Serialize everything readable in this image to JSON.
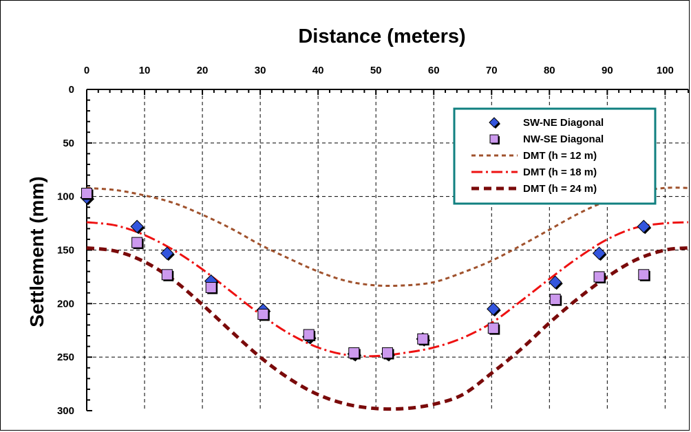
{
  "chart_data": {
    "type": "scatter",
    "title": "Distance (meters)",
    "xlabel": "Distance (meters)",
    "ylabel": "Settlement (mm)",
    "xlim": [
      0,
      104
    ],
    "ylim": [
      0,
      300
    ],
    "y_inverted": true,
    "x_axis_position": "top",
    "x_ticks": [
      0,
      10,
      20,
      30,
      40,
      50,
      60,
      70,
      80,
      90,
      100
    ],
    "y_ticks": [
      0,
      50,
      100,
      150,
      200,
      250,
      300
    ],
    "grid": true,
    "legend_position": "top-right",
    "series": [
      {
        "name": "SW-NE Diagonal",
        "marker": "diamond",
        "color": "#3355dd",
        "points": [
          [
            0,
            101
          ],
          [
            8.7,
            128
          ],
          [
            13.9,
            153
          ],
          [
            21.5,
            179
          ],
          [
            30.5,
            206
          ],
          [
            38.4,
            231
          ],
          [
            46.2,
            247
          ],
          [
            52,
            247
          ],
          [
            58.1,
            233
          ],
          [
            70.3,
            205
          ],
          [
            81,
            180
          ],
          [
            88.6,
            153
          ],
          [
            96.3,
            128
          ]
        ]
      },
      {
        "name": "NW-SE Diagonal",
        "marker": "square",
        "color": "#cc99ee",
        "points": [
          [
            0,
            97
          ],
          [
            8.7,
            143
          ],
          [
            13.9,
            173
          ],
          [
            21.5,
            185
          ],
          [
            30.5,
            210
          ],
          [
            38.4,
            229
          ],
          [
            46.2,
            246
          ],
          [
            52,
            246
          ],
          [
            58.1,
            233
          ],
          [
            70.3,
            223
          ],
          [
            81,
            196
          ],
          [
            88.6,
            175
          ],
          [
            96.3,
            173
          ]
        ]
      },
      {
        "name": "DMT (h = 12 m)",
        "type": "line",
        "style": "dotted",
        "color": "#a0522d",
        "x": [
          0,
          5,
          10,
          15,
          20,
          25,
          30,
          35,
          40,
          45,
          50,
          55,
          60,
          65,
          70,
          75,
          80,
          85,
          90,
          95,
          100,
          104
        ],
        "y": [
          92,
          94,
          99,
          106,
          117,
          130,
          145,
          158,
          170,
          179,
          183,
          183,
          180,
          171,
          160,
          146,
          131,
          116,
          104,
          96,
          92,
          92
        ]
      },
      {
        "name": "DMT (h = 18 m)",
        "type": "line",
        "style": "dashdot",
        "color": "#ee1111",
        "x": [
          0,
          5,
          10,
          15,
          20,
          25,
          30,
          35,
          40,
          45,
          50,
          55,
          60,
          65,
          70,
          75,
          80,
          85,
          90,
          95,
          100,
          104
        ],
        "y": [
          124,
          127,
          136,
          150,
          168,
          189,
          210,
          228,
          241,
          248,
          249,
          246,
          241,
          232,
          218,
          198,
          177,
          157,
          140,
          129,
          125,
          124
        ]
      },
      {
        "name": "DMT (h = 24 m)",
        "type": "line",
        "style": "dashed",
        "color": "#7a0a0a",
        "x": [
          0,
          5,
          10,
          15,
          20,
          25,
          30,
          35,
          40,
          45,
          50,
          55,
          60,
          65,
          70,
          75,
          80,
          85,
          90,
          95,
          100,
          104
        ],
        "y": [
          148,
          151,
          161,
          178,
          201,
          226,
          250,
          270,
          285,
          294,
          298,
          298,
          294,
          285,
          265,
          243,
          218,
          195,
          175,
          159,
          150,
          148
        ]
      }
    ]
  }
}
